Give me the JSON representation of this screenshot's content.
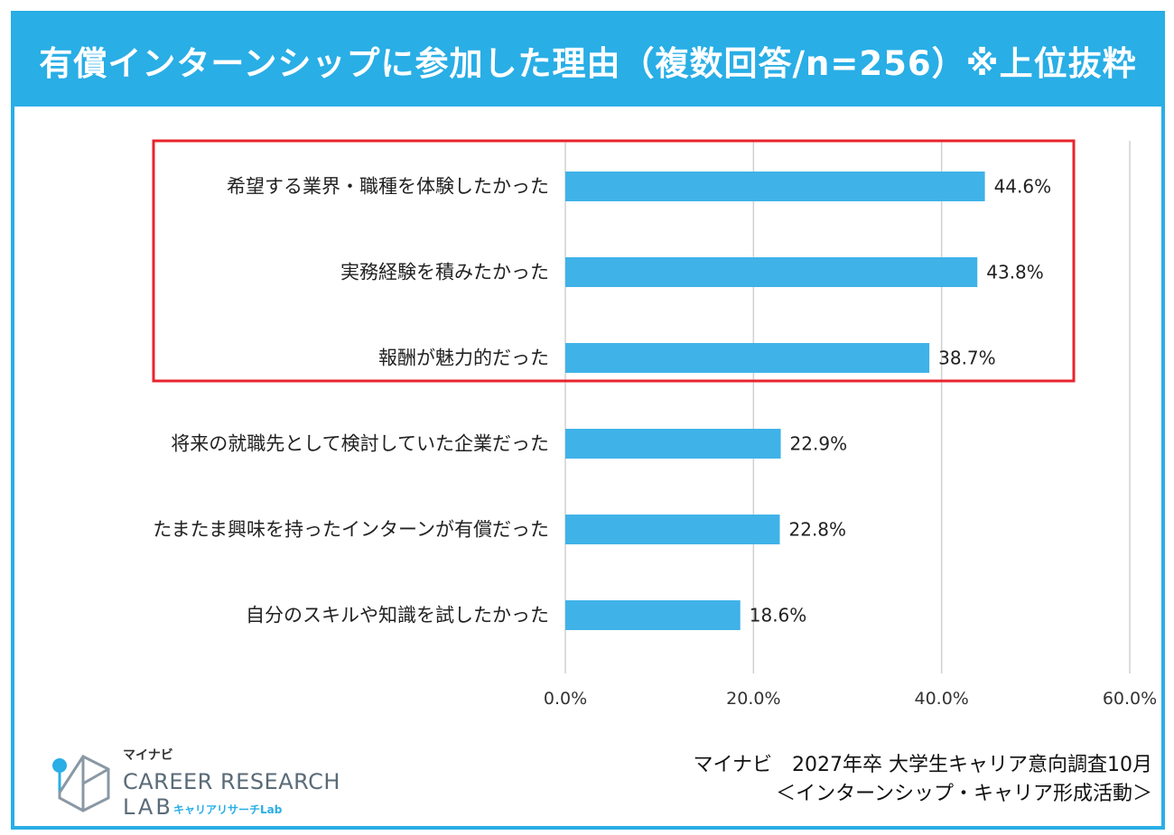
{
  "title": "有償インターンシップに参加した理由（複数回答/n=256）※上位抜粋",
  "chart_data": {
    "type": "bar",
    "orientation": "horizontal",
    "title": "有償インターンシップに参加した理由（複数回答/n=256）※上位抜粋",
    "categories": [
      "希望する業界・職種を体験したかった",
      "実務経験を積みたかった",
      "報酬が魅力的だった",
      "将来の就職先として検討していた企業だった",
      "たまたま興味を持ったインターンが有償だった",
      "自分のスキルや知識を試したかった"
    ],
    "values": [
      44.6,
      43.8,
      38.7,
      22.9,
      22.8,
      18.6
    ],
    "value_labels": [
      "44.6%",
      "43.8%",
      "38.7%",
      "22.9%",
      "22.8%",
      "18.6%"
    ],
    "xlim": [
      0,
      60
    ],
    "ticks": [
      0,
      20,
      40,
      60
    ],
    "tick_labels": [
      "0.0%",
      "20.0%",
      "40.0%",
      "60.0%"
    ],
    "grid": true,
    "highlighted_categories": 3,
    "colors": {
      "bar": "#3fb2e8",
      "grid": "#d0d0d0",
      "highlight": "#e8242c",
      "accent": "#29aee6"
    }
  },
  "source": {
    "line1": "マイナビ　2027年卒  大学生キャリア意向調査10月",
    "line2": "＜インターンシップ・キャリア形成活動＞"
  },
  "logo": {
    "small": "マイナビ",
    "main": "CAREER RESEARCH",
    "lab": "LAB",
    "sub": "キャリアリサーチLab"
  }
}
